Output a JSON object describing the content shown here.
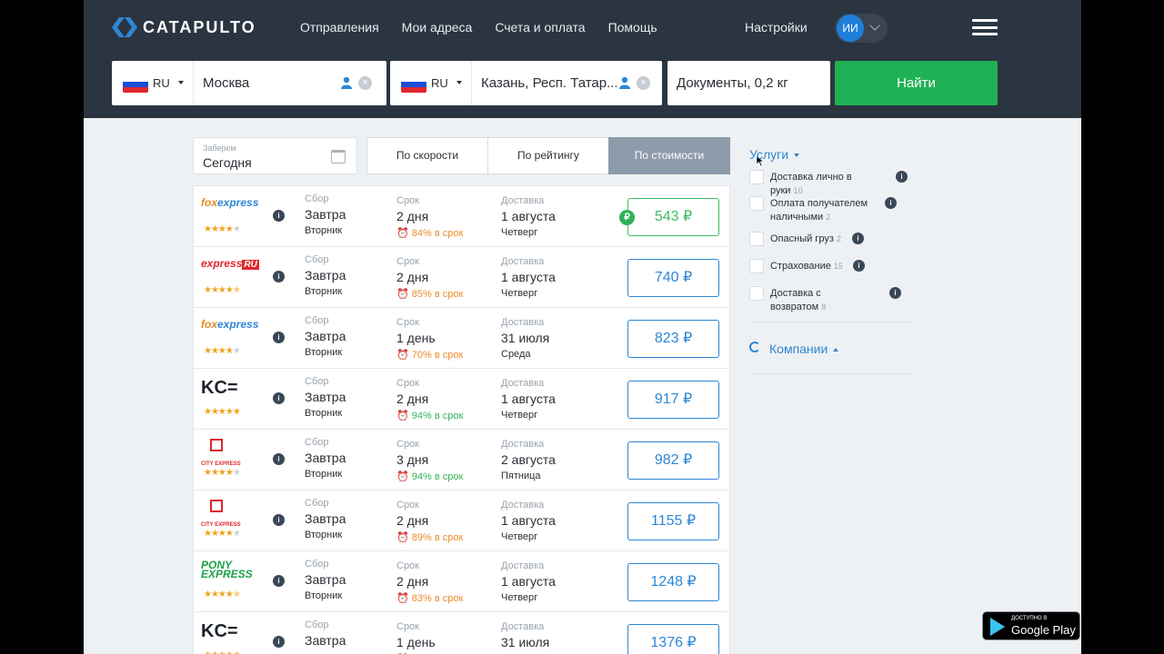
{
  "app": {
    "logo_text": "CATAPULTO"
  },
  "nav": [
    "Отправления",
    "Мои адреса",
    "Счета и оплата",
    "Помощь"
  ],
  "header": {
    "settings": "Настройки",
    "avatar_initials": "ИИ"
  },
  "search": {
    "from": {
      "country": "RU",
      "city": "Москва"
    },
    "to": {
      "country": "RU",
      "city": "Казань, Респ. Татар..."
    },
    "cargo": "Документы, 0,2 кг",
    "find_label": "Найти"
  },
  "pickup": {
    "label": "Заберем",
    "value": "Сегодня"
  },
  "sort": {
    "speed": "По скорости",
    "rating": "По рейтингу",
    "price": "По стоимости"
  },
  "column_labels": {
    "pickup": "Сбор",
    "term": "Срок",
    "delivery": "Доставка"
  },
  "results": [
    {
      "carrier": "Fox Express",
      "rating": 4,
      "pickup": "Завтра",
      "pickup_day": "Вторник",
      "term": "2 дня",
      "ontime": "84% в срок",
      "ontime_color": "orange",
      "delivery": "1 августа",
      "delivery_day": "Четверг",
      "price": "543 ₽",
      "best": true
    },
    {
      "carrier": "Express.ru",
      "rating": 4.5,
      "pickup": "Завтра",
      "pickup_day": "Вторник",
      "term": "2 дня",
      "ontime": "85% в срок",
      "ontime_color": "orange",
      "delivery": "1 августа",
      "delivery_day": "Четверг",
      "price": "740 ₽",
      "best": false
    },
    {
      "carrier": "Fox Express",
      "rating": 4,
      "pickup": "Завтра",
      "pickup_day": "Вторник",
      "term": "1 день",
      "ontime": "70% в срок",
      "ontime_color": "orange",
      "delivery": "31 июля",
      "delivery_day": "Среда",
      "price": "823 ₽",
      "best": false
    },
    {
      "carrier": "KCE",
      "rating": 5,
      "pickup": "Завтра",
      "pickup_day": "Вторник",
      "term": "2 дня",
      "ontime": "94% в срок",
      "ontime_color": "green",
      "delivery": "1 августа",
      "delivery_day": "Четверг",
      "price": "917 ₽",
      "best": false
    },
    {
      "carrier": "City Express",
      "rating": 4,
      "pickup": "Завтра",
      "pickup_day": "Вторник",
      "term": "3 дня",
      "ontime": "94% в срок",
      "ontime_color": "green",
      "delivery": "2 августа",
      "delivery_day": "Пятница",
      "price": "982 ₽",
      "best": false
    },
    {
      "carrier": "City Express",
      "rating": 4,
      "pickup": "Завтра",
      "pickup_day": "Вторник",
      "term": "2 дня",
      "ontime": "89% в срок",
      "ontime_color": "orange",
      "delivery": "1 августа",
      "delivery_day": "Четверг",
      "price": "1155 ₽",
      "best": false
    },
    {
      "carrier": "Pony Express",
      "rating": 4.5,
      "pickup": "Завтра",
      "pickup_day": "Вторник",
      "term": "2 дня",
      "ontime": "83% в срок",
      "ontime_color": "orange",
      "delivery": "1 августа",
      "delivery_day": "Четверг",
      "price": "1248 ₽",
      "best": false
    },
    {
      "carrier": "KCE",
      "rating": 5,
      "pickup": "Завтра",
      "pickup_day": "",
      "term": "1 день",
      "ontime": "",
      "ontime_color": "orange",
      "delivery": "31 июля",
      "delivery_day": "",
      "price": "1376 ₽",
      "best": false
    }
  ],
  "services": {
    "title": "Услуги",
    "items": [
      {
        "label": "Доставка лично в руки",
        "count": "10"
      },
      {
        "label": "Оплата получателем наличными",
        "count": "2"
      },
      {
        "label": "Опасный груз",
        "count": "2"
      },
      {
        "label": "Страхование",
        "count": "15"
      },
      {
        "label": "Доставка с возвратом",
        "count": "8"
      }
    ]
  },
  "companies": {
    "title": "Компании"
  },
  "badges": {
    "google_small": "ДОСТУПНО В",
    "google_big": "Google Play",
    "ruble": "₽",
    "info": "i"
  },
  "colors": {
    "header_bg": "#2b3541",
    "accent": "#2d86d4",
    "find": "#1fb154",
    "best_price": "#3dbd60",
    "star": "#f2a11a"
  }
}
